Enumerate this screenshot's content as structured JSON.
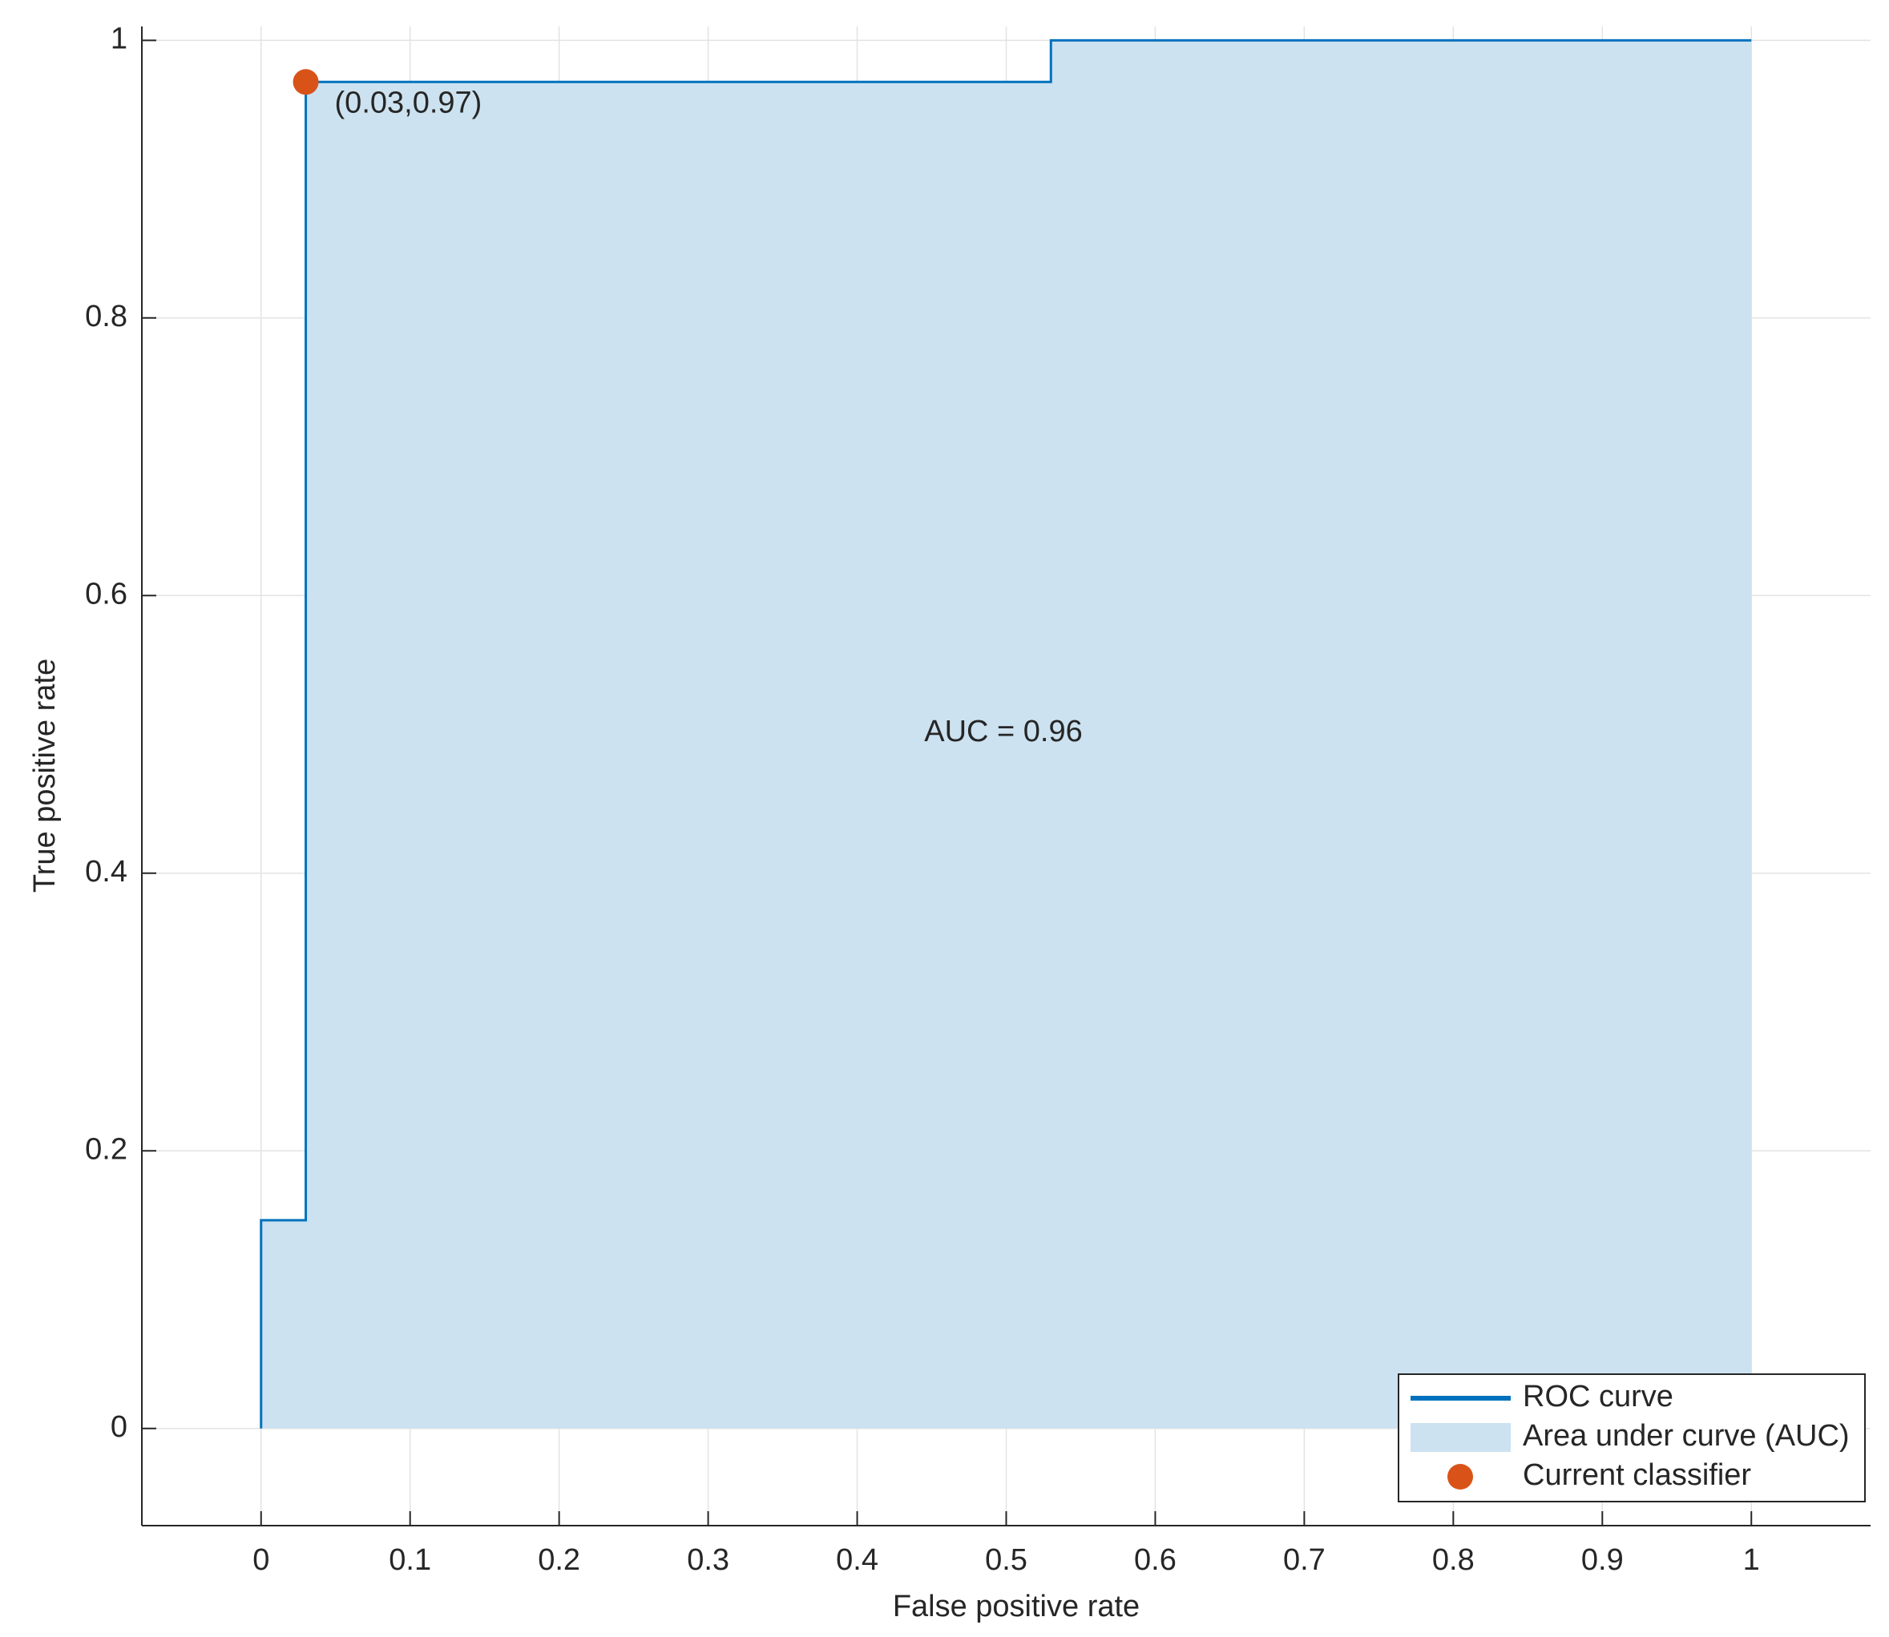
{
  "chart_data": {
    "type": "line",
    "xlabel": "False positive rate",
    "ylabel": "True positive rate",
    "x": [
      0,
      0,
      0.03,
      0.03,
      0.53,
      0.53,
      1
    ],
    "series": [
      {
        "name": "ROC curve",
        "color": "#0072bd",
        "values": [
          0,
          0.15,
          0.15,
          0.97,
          0.97,
          1,
          1
        ]
      },
      {
        "name": "Area under curve (AUC)",
        "color": "#cce2f0",
        "values": [
          0,
          0.15,
          0.15,
          0.97,
          0.97,
          1,
          1
        ],
        "fill": true
      }
    ],
    "point": {
      "name": "Current classifier",
      "color": "#d95319",
      "x": 0.03,
      "y": 0.97,
      "label": "(0.03,0.97)"
    },
    "annotation": "AUC = 0.96",
    "xlim": [
      -0.08,
      1.08
    ],
    "ylim": [
      -0.07,
      1.01
    ],
    "xticks": [
      0,
      0.1,
      0.2,
      0.3,
      0.4,
      0.5,
      0.6,
      0.7,
      0.8,
      0.9,
      1
    ],
    "yticks": [
      0,
      0.2,
      0.4,
      0.6,
      0.8,
      1
    ],
    "grid": true,
    "legend": "lower right"
  }
}
